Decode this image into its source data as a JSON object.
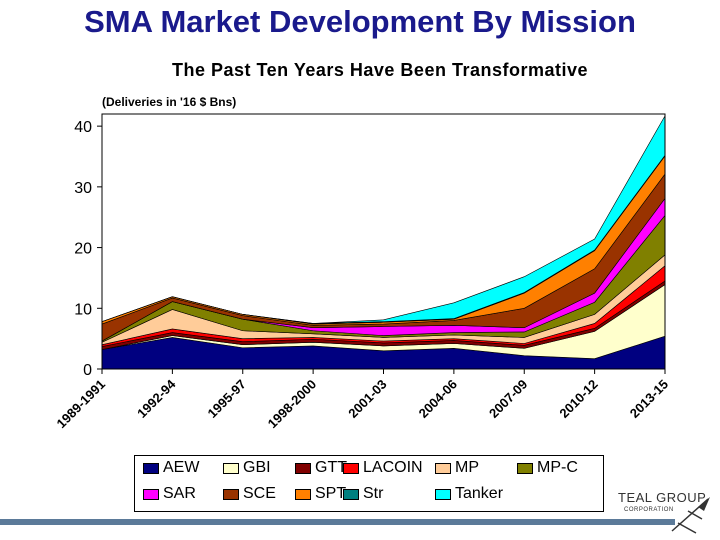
{
  "chart_data": {
    "type": "area",
    "stacked": true,
    "title": "SMA Market Development By Mission",
    "subtitle": "The Past Ten Years Have Been Transformative",
    "unit_label": "(Deliveries in '16 $ Bns)",
    "categories": [
      "1989-1991",
      "1992-94",
      "1995-97",
      "1998-2000",
      "2001-03",
      "2004-06",
      "2007-09",
      "2010-12",
      "2013-15"
    ],
    "ylim": [
      0,
      42
    ],
    "yticks": [
      0,
      10,
      20,
      30,
      40
    ],
    "series": [
      {
        "name": "AEW",
        "color": "#000080",
        "values": [
          3.2,
          5.2,
          3.5,
          3.8,
          3.0,
          3.4,
          2.2,
          1.7,
          5.4
        ]
      },
      {
        "name": "GBI",
        "color": "#ffffcc",
        "values": [
          0.0,
          0.3,
          0.5,
          0.6,
          0.8,
          0.8,
          1.2,
          4.5,
          8.5
        ]
      },
      {
        "name": "GTT",
        "color": "#800000",
        "values": [
          0.5,
          0.5,
          0.5,
          0.5,
          0.5,
          0.5,
          0.5,
          0.5,
          0.6
        ]
      },
      {
        "name": "LACOIN",
        "color": "#ff0000",
        "values": [
          0.3,
          0.6,
          0.5,
          0.3,
          0.3,
          0.3,
          0.3,
          0.8,
          2.5
        ]
      },
      {
        "name": "MP",
        "color": "#ffcc99",
        "values": [
          0.4,
          3.2,
          1.3,
          0.6,
          0.6,
          0.6,
          1.0,
          1.5,
          1.8
        ]
      },
      {
        "name": "MP-C",
        "color": "#808000",
        "values": [
          0.2,
          1.3,
          1.9,
          0.5,
          0.3,
          0.4,
          0.9,
          2.0,
          6.5
        ]
      },
      {
        "name": "SAR",
        "color": "#ff00ff",
        "values": [
          0.0,
          0.0,
          0.0,
          0.5,
          1.5,
          1.2,
          0.7,
          1.5,
          2.8
        ]
      },
      {
        "name": "SCE",
        "color": "#993300",
        "values": [
          2.8,
          0.6,
          0.6,
          0.4,
          0.4,
          0.8,
          3.2,
          4.0,
          4.0
        ]
      },
      {
        "name": "SPT",
        "color": "#ff8000",
        "values": [
          0.4,
          0.2,
          0.2,
          0.2,
          0.3,
          0.2,
          2.5,
          3.0,
          3.0
        ]
      },
      {
        "name": "Str",
        "color": "#008080",
        "values": [
          0.0,
          0.0,
          0.0,
          0.1,
          0.1,
          0.1,
          0.1,
          0.1,
          0.1
        ]
      },
      {
        "name": "Tanker",
        "color": "#00ffff",
        "values": [
          0.0,
          0.0,
          0.0,
          0.0,
          0.3,
          2.6,
          2.6,
          1.8,
          6.5
        ]
      }
    ]
  },
  "footer": {
    "logo_text": "TEAL GROUP",
    "logo_sub": "CORPORATION"
  }
}
